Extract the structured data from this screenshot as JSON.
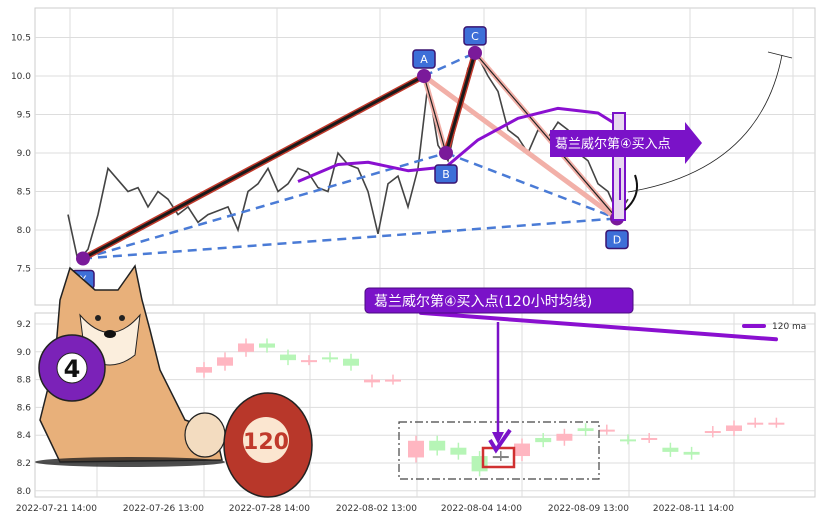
{
  "chart_data": [
    {
      "type": "line",
      "panel": "top",
      "yticks": [
        7.5,
        8.0,
        8.5,
        9.0,
        9.5,
        10.0,
        10.5
      ],
      "ylim": [
        7.0,
        10.9
      ],
      "grid": true,
      "price_series": [
        8.2,
        7.6,
        7.75,
        8.2,
        8.8,
        8.65,
        8.5,
        8.55,
        8.3,
        8.5,
        8.4,
        8.2,
        8.3,
        8.1,
        8.2,
        8.25,
        8.3,
        8.0,
        8.5,
        8.6,
        8.8,
        8.5,
        8.6,
        8.8,
        8.75,
        8.55,
        8.5,
        9.0,
        8.85,
        8.8,
        8.5,
        7.95,
        8.6,
        8.7,
        8.3,
        8.8,
        9.9,
        9.1,
        8.9,
        9.5,
        10.1,
        10.25,
        10.0,
        9.8,
        9.3,
        9.2,
        9.0,
        9.3,
        9.2,
        9.4,
        9.3,
        9.0,
        8.9,
        8.6,
        8.5,
        8.2,
        8.4
      ],
      "ma_series": [
        [
          23,
          8.63
        ],
        [
          27,
          8.85
        ],
        [
          30,
          8.88
        ],
        [
          34,
          8.77
        ],
        [
          37.8,
          8.82
        ],
        [
          41,
          9.17
        ],
        [
          45,
          9.45
        ],
        [
          49,
          9.58
        ],
        [
          53,
          9.52
        ],
        [
          55.7,
          9.3
        ]
      ],
      "pattern_points": [
        {
          "label": "X",
          "index": 1.5,
          "value": 7.63
        },
        {
          "label": "A",
          "index": 35.6,
          "value": 10.0
        },
        {
          "label": "B",
          "index": 37.8,
          "value": 9.0
        },
        {
          "label": "C",
          "index": 40.7,
          "value": 10.3
        },
        {
          "label": "D",
          "index": 54.9,
          "value": 8.15
        }
      ],
      "annotation": "葛兰威尔第④买入点",
      "colors": {
        "price": "#444444",
        "ma": "#8a10d0",
        "xa": "#1a1a1a",
        "xa_outline": "#c0392b",
        "dashed": "#4a7bd6",
        "marker": "#3d6fd8",
        "callout": "#7a12c8"
      }
    },
    {
      "type": "candlestick",
      "panel": "bottom",
      "yticks": [
        8.0,
        8.2,
        8.4,
        8.6,
        8.8,
        9.0,
        9.2
      ],
      "ylim": [
        7.98,
        9.27
      ],
      "xtick_labels": [
        "2022-07-21 14:00",
        "2022-07-26 13:00",
        "2022-07-28 14:00",
        "2022-08-02 13:00",
        "2022-08-04 14:00",
        "2022-08-09 13:00",
        "2022-08-11 14:00"
      ],
      "grid": true,
      "candles": [
        [
          8.85,
          8.89,
          "up"
        ],
        [
          8.9,
          8.96,
          "up"
        ],
        [
          9.0,
          9.06,
          "up"
        ],
        [
          9.06,
          9.03,
          "down"
        ],
        [
          8.98,
          8.94,
          "down"
        ],
        [
          8.94,
          8.94,
          "up"
        ],
        [
          8.96,
          8.96,
          "down"
        ],
        [
          8.95,
          8.9,
          "down"
        ],
        [
          8.78,
          8.8,
          "up"
        ],
        [
          8.8,
          8.8,
          "up"
        ],
        [
          8.24,
          8.36,
          "up"
        ],
        [
          8.36,
          8.29,
          "down"
        ],
        [
          8.31,
          8.26,
          "down"
        ],
        [
          8.25,
          8.14,
          "down"
        ],
        [
          8.25,
          8.25,
          "doji"
        ],
        [
          8.25,
          8.34,
          "up"
        ],
        [
          8.38,
          8.35,
          "down"
        ],
        [
          8.36,
          8.41,
          "up"
        ],
        [
          8.45,
          8.43,
          "down"
        ],
        [
          8.44,
          8.44,
          "up"
        ],
        [
          8.37,
          8.37,
          "down"
        ],
        [
          8.38,
          8.38,
          "up"
        ],
        [
          8.31,
          8.28,
          "down"
        ],
        [
          8.28,
          8.26,
          "down"
        ],
        [
          8.42,
          8.43,
          "up"
        ],
        [
          8.43,
          8.47,
          "up"
        ],
        [
          8.49,
          8.49,
          "up"
        ],
        [
          8.49,
          8.49,
          "up"
        ]
      ],
      "ma_line": {
        "name": "120 ma",
        "start": 9.28,
        "end": 9.09
      },
      "legend": "top-right",
      "annotation": "葛兰威尔第④买入点(120小时均线)",
      "colors": {
        "up": "#ffb6c1",
        "down": "#b6f5b6",
        "doji": "#808080",
        "ma": "#8a10d0",
        "highlight": "#d03030"
      }
    }
  ],
  "illustration": {
    "ball_purple": "4",
    "ball_red": "120"
  }
}
